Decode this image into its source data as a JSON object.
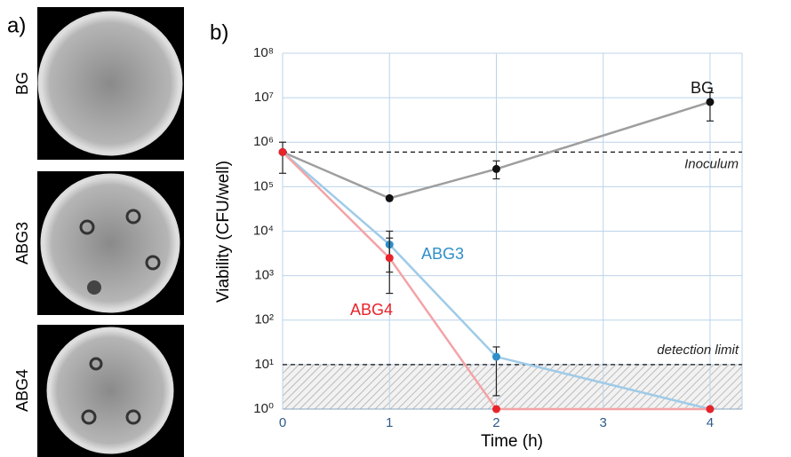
{
  "panel_a": {
    "label": "a)",
    "images": [
      "BG",
      "ABG3",
      "ABG4"
    ]
  },
  "chart_data": {
    "type": "line",
    "panel_label": "b)",
    "x_label": "Time (h)",
    "y_label": "Viability (CFU/well)",
    "x": [
      0,
      1,
      2,
      4
    ],
    "xlim": [
      0,
      4.3
    ],
    "xticks": [
      0,
      1,
      2,
      3,
      4
    ],
    "ylim": [
      1,
      100000000
    ],
    "log_scale": true,
    "grid": true,
    "yticks": [
      {
        "value": 1,
        "label": "10⁰"
      },
      {
        "value": 10,
        "label": "10¹"
      },
      {
        "value": 100,
        "label": "10²"
      },
      {
        "value": 1000,
        "label": "10³"
      },
      {
        "value": 10000,
        "label": "10⁴"
      },
      {
        "value": 100000,
        "label": "10⁵"
      },
      {
        "value": 1000000,
        "label": "10⁶"
      },
      {
        "value": 10000000,
        "label": "10⁷"
      },
      {
        "value": 100000000,
        "label": "10⁸"
      }
    ],
    "series": [
      {
        "name": "BG",
        "color": "#111111",
        "line_color": "#9e9e9e",
        "values": [
          600000,
          55000,
          250000,
          8000000
        ],
        "err_low": [
          200000,
          null,
          150000,
          3000000
        ],
        "err_high": [
          1000000,
          null,
          380000,
          13000000
        ]
      },
      {
        "name": "ABG3",
        "color": "#2e8fc9",
        "line_color": "#9fcbe8",
        "values": [
          600000,
          5000,
          15,
          1
        ],
        "err_low": [
          null,
          1200,
          2,
          null
        ],
        "err_high": [
          null,
          10000,
          25,
          null
        ]
      },
      {
        "name": "ABG4",
        "color": "#e8232a",
        "line_color": "#f3a3a6",
        "values": [
          600000,
          2500,
          1,
          1
        ],
        "err_low": [
          null,
          400,
          null,
          null
        ],
        "err_high": [
          null,
          7000,
          null,
          null
        ]
      }
    ],
    "annotations": [
      {
        "text": "Inoculum",
        "value": 600000
      },
      {
        "text": "detection limit",
        "value": 10
      }
    ]
  }
}
